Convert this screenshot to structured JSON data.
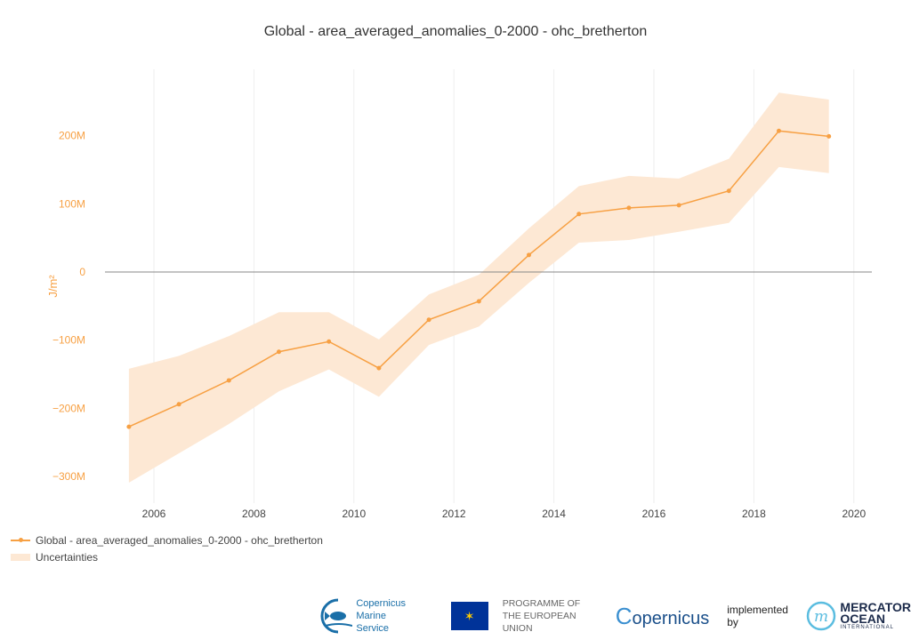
{
  "chart_data": {
    "type": "line",
    "title": "Global - area_averaged_anomalies_0-2000 - ohc_bretherton",
    "xlabel": "",
    "ylabel": "J/m²",
    "x": [
      2005.5,
      2006.5,
      2007.5,
      2008.5,
      2009.5,
      2010.5,
      2011.5,
      2012.5,
      2013.5,
      2014.5,
      2015.5,
      2016.5,
      2017.5,
      2018.5,
      2019.5
    ],
    "xticks": [
      "2006",
      "2008",
      "2010",
      "2012",
      "2014",
      "2016",
      "2018",
      "2020"
    ],
    "yticks": [
      "−300M",
      "−200M",
      "−100M",
      "0",
      "100M",
      "200M"
    ],
    "ylim": [
      -335,
      290
    ],
    "xlim": [
      2004.6,
      2020.3
    ],
    "grid": "vertical",
    "legend_placement": "bottom-left",
    "colors": {
      "line": "#f7a043",
      "band": "#fde8d4",
      "axis_text": "#f7a043",
      "zero_line": "#888888"
    },
    "series": [
      {
        "name": "Global - area_averaged_anomalies_0-2000 - ohc_bretherton",
        "values": [
          -227,
          -194,
          -159,
          -117,
          -102,
          -141,
          -70,
          -43,
          25,
          85,
          94,
          98,
          119,
          207,
          199
        ]
      }
    ],
    "band": {
      "name": "Uncertainties",
      "upper": [
        -142,
        -123,
        -94,
        -59,
        -59,
        -99,
        -33,
        -4,
        64,
        126,
        141,
        137,
        166,
        263,
        253
      ],
      "lower": [
        -309,
        -266,
        -223,
        -175,
        -143,
        -183,
        -107,
        -80,
        -16,
        43,
        47,
        59,
        72,
        154,
        145
      ]
    },
    "y_unit": "M"
  },
  "footer": {
    "cms_line1": "Copernicus",
    "cms_line2": "Marine Service",
    "programme_line1": "PROGRAMME OF",
    "programme_line2": "THE EUROPEAN UNION",
    "copernicus": "opernicus",
    "implemented_by": "implemented by",
    "mercator_line1": "MERCATOR",
    "mercator_line2": "OCEAN",
    "mercator_line3": "INTERNATIONAL"
  }
}
